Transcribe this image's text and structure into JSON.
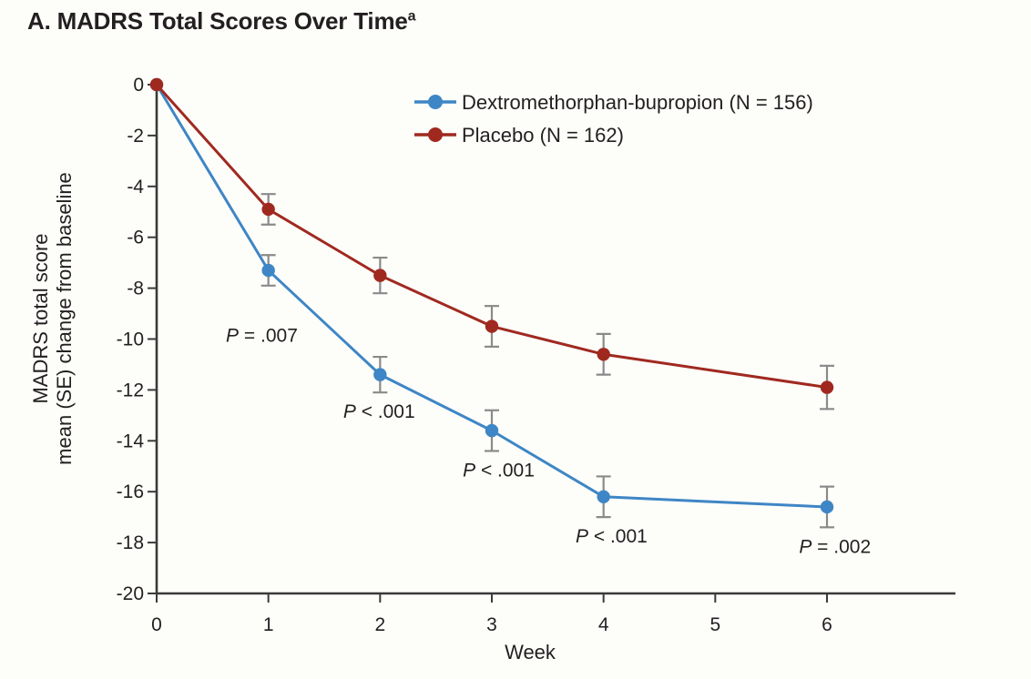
{
  "figure": {
    "background": "#fdfdfa",
    "text_color": "#231f20"
  },
  "title": {
    "text": "A. MADRS Total Scores Over Time",
    "superscript": "a"
  },
  "chart_data": {
    "type": "line",
    "x": [
      0,
      1,
      2,
      3,
      4,
      6
    ],
    "series": [
      {
        "name": "Dextromethorphan-bupropion (N = 156)",
        "color": "#3e86c5",
        "values": [
          0,
          -7.3,
          -11.4,
          -13.6,
          -16.2,
          -16.6
        ],
        "se": [
          0,
          0.6,
          0.7,
          0.8,
          0.8,
          0.8
        ]
      },
      {
        "name": "Placebo (N = 162)",
        "color": "#a0291f",
        "values": [
          0,
          -4.9,
          -7.5,
          -9.5,
          -10.6,
          -11.9
        ],
        "se": [
          0,
          0.6,
          0.7,
          0.8,
          0.8,
          0.85
        ]
      }
    ],
    "xlabel": "Week",
    "ylabel_line1": "MADRS total score",
    "ylabel_line2": "mean (SE) change from baseline",
    "xlim": [
      0,
      7.15
    ],
    "ylim": [
      -20,
      0
    ],
    "xticks": [
      0,
      1,
      2,
      3,
      4,
      5,
      6
    ],
    "yticks": [
      0,
      -2,
      -4,
      -6,
      -8,
      -10,
      -12,
      -14,
      -16,
      -18,
      -20
    ],
    "grid": false,
    "legend_position": "top-inside",
    "annotations": [
      {
        "text": "P = .007",
        "x": 0.62,
        "y": -10.1
      },
      {
        "text": "P < .001",
        "x": 1.67,
        "y": -13.1
      },
      {
        "text": "P < .001",
        "x": 2.74,
        "y": -15.4
      },
      {
        "text": "P < .001",
        "x": 3.75,
        "y": -18.0
      },
      {
        "text": "P = .002",
        "x": 5.75,
        "y": -18.4
      }
    ],
    "colors": {
      "axis": "#3a3a3a",
      "error_bar": "#8a8a8a"
    }
  }
}
